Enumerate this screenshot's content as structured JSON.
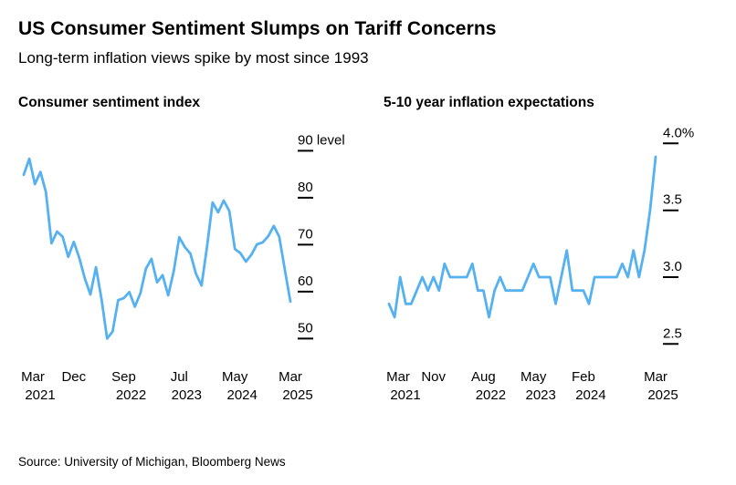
{
  "header": {
    "title": "US Consumer Sentiment Slumps on Tariff Concerns",
    "subtitle": "Long-term inflation views spike by most since 1993"
  },
  "source": "Source: University of Michigan, Bloomberg News",
  "accent_color": "#55B1EF",
  "chart_data": [
    {
      "type": "line",
      "title": "Consumer sentiment index",
      "ylabel": "level",
      "ylim": [
        46,
        93
      ],
      "grid": false,
      "legend_position": "none",
      "x": [
        "Mar 2021",
        "Apr 2021",
        "May 2021",
        "Jun 2021",
        "Jul 2021",
        "Aug 2021",
        "Sep 2021",
        "Oct 2021",
        "Nov 2021",
        "Dec 2021",
        "Jan 2022",
        "Feb 2022",
        "Mar 2022",
        "Apr 2022",
        "May 2022",
        "Jun 2022",
        "Jul 2022",
        "Aug 2022",
        "Sep 2022",
        "Oct 2022",
        "Nov 2022",
        "Dec 2022",
        "Jan 2023",
        "Feb 2023",
        "Mar 2023",
        "Apr 2023",
        "May 2023",
        "Jun 2023",
        "Jul 2023",
        "Aug 2023",
        "Sep 2023",
        "Oct 2023",
        "Nov 2023",
        "Dec 2023",
        "Jan 2024",
        "Feb 2024",
        "Mar 2024",
        "Apr 2024",
        "May 2024",
        "Jun 2024",
        "Jul 2024",
        "Aug 2024",
        "Sep 2024",
        "Oct 2024",
        "Nov 2024",
        "Dec 2024",
        "Jan 2025",
        "Feb 2025",
        "Mar 2025"
      ],
      "values": [
        84.9,
        88.3,
        82.9,
        85.5,
        81.2,
        70.3,
        72.8,
        71.7,
        67.4,
        70.6,
        67.2,
        62.8,
        59.4,
        65.2,
        58.4,
        50.0,
        51.5,
        58.2,
        58.6,
        59.9,
        56.8,
        59.7,
        64.9,
        67.0,
        62.0,
        63.5,
        59.2,
        64.4,
        71.6,
        69.5,
        68.1,
        63.8,
        61.3,
        69.7,
        79.0,
        76.9,
        79.4,
        77.2,
        69.1,
        68.2,
        66.4,
        67.9,
        70.1,
        70.5,
        71.8,
        74.0,
        71.7,
        64.7,
        57.9
      ],
      "yticks": [
        {
          "value": 90,
          "label": "90 level"
        },
        {
          "value": 80,
          "label": "80"
        },
        {
          "value": 70,
          "label": "70"
        },
        {
          "value": 60,
          "label": "60"
        },
        {
          "value": 50,
          "label": "50"
        }
      ],
      "xticks": [
        {
          "index": 0,
          "month": "Mar",
          "year": "2021"
        },
        {
          "index": 9,
          "month": "Dec",
          "year": ""
        },
        {
          "index": 18,
          "month": "Sep",
          "year": "2022"
        },
        {
          "index": 28,
          "month": "Jul",
          "year": "2023"
        },
        {
          "index": 38,
          "month": "May",
          "year": "2024"
        },
        {
          "index": 48,
          "month": "Mar",
          "year": "2025"
        }
      ]
    },
    {
      "type": "line",
      "title": "5-10 year inflation expectations",
      "ylabel": "%",
      "ylim": [
        2.4,
        4.05
      ],
      "grid": false,
      "legend_position": "none",
      "x": [
        "Mar 2021",
        "Apr 2021",
        "May 2021",
        "Jun 2021",
        "Jul 2021",
        "Aug 2021",
        "Sep 2021",
        "Oct 2021",
        "Nov 2021",
        "Dec 2021",
        "Jan 2022",
        "Feb 2022",
        "Mar 2022",
        "Apr 2022",
        "May 2022",
        "Jun 2022",
        "Jul 2022",
        "Aug 2022",
        "Sep 2022",
        "Oct 2022",
        "Nov 2022",
        "Dec 2022",
        "Jan 2023",
        "Feb 2023",
        "Mar 2023",
        "Apr 2023",
        "May 2023",
        "Jun 2023",
        "Jul 2023",
        "Aug 2023",
        "Sep 2023",
        "Oct 2023",
        "Nov 2023",
        "Dec 2023",
        "Jan 2024",
        "Feb 2024",
        "Mar 2024",
        "Apr 2024",
        "May 2024",
        "Jun 2024",
        "Jul 2024",
        "Aug 2024",
        "Sep 2024",
        "Oct 2024",
        "Nov 2024",
        "Dec 2024",
        "Jan 2025",
        "Feb 2025",
        "Mar 2025"
      ],
      "values": [
        2.8,
        2.7,
        3.0,
        2.8,
        2.8,
        2.9,
        3.0,
        2.9,
        3.0,
        2.9,
        3.1,
        3.0,
        3.0,
        3.0,
        3.0,
        3.1,
        2.9,
        2.9,
        2.7,
        2.9,
        3.0,
        2.9,
        2.9,
        2.9,
        2.9,
        3.0,
        3.1,
        3.0,
        3.0,
        3.0,
        2.8,
        3.0,
        3.2,
        2.9,
        2.9,
        2.9,
        2.8,
        3.0,
        3.0,
        3.0,
        3.0,
        3.0,
        3.1,
        3.0,
        3.2,
        3.0,
        3.2,
        3.5,
        3.9
      ],
      "yticks": [
        {
          "value": 4.0,
          "label": "4.0%"
        },
        {
          "value": 3.5,
          "label": "3.5"
        },
        {
          "value": 3.0,
          "label": "3.0"
        },
        {
          "value": 2.5,
          "label": "2.5"
        }
      ],
      "xticks": [
        {
          "index": 0,
          "month": "Mar",
          "year": "2021"
        },
        {
          "index": 8,
          "month": "Nov",
          "year": ""
        },
        {
          "index": 17,
          "month": "Aug",
          "year": "2022"
        },
        {
          "index": 26,
          "month": "May",
          "year": "2023"
        },
        {
          "index": 35,
          "month": "Feb",
          "year": "2024"
        },
        {
          "index": 48,
          "month": "Mar",
          "year": "2025"
        }
      ]
    }
  ]
}
